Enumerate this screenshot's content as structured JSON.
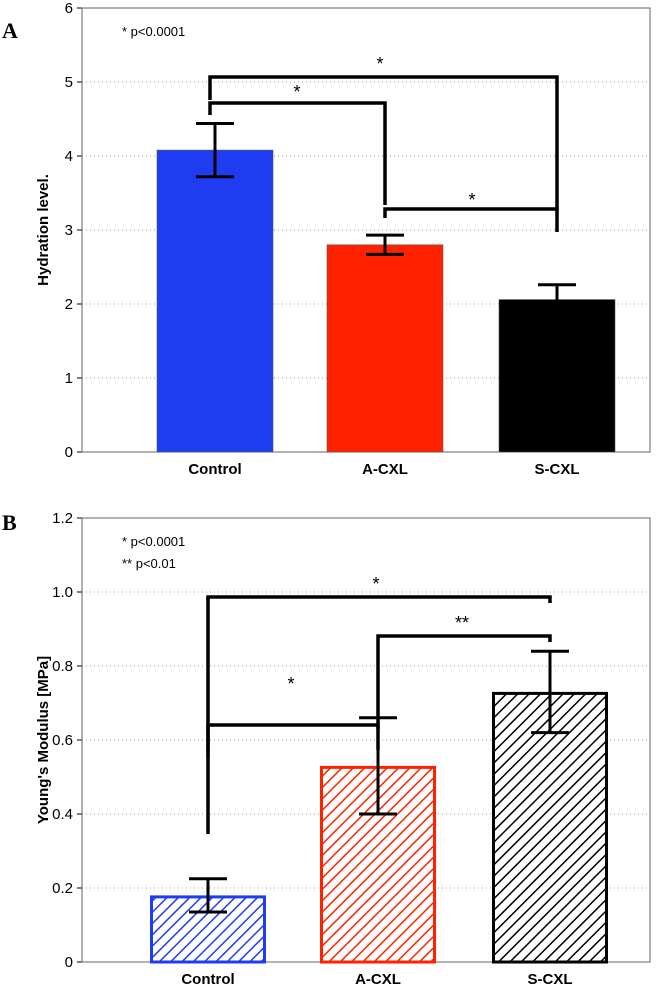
{
  "chart_data": [
    {
      "type": "bar",
      "panel_label": "A",
      "categories": [
        "Control",
        "A-CXL",
        "S-CXL"
      ],
      "values": [
        4.08,
        2.8,
        2.06
      ],
      "errors": [
        0.36,
        0.13,
        0.2
      ],
      "colors": [
        "#1f3cf0",
        "#ff2200",
        "#000000"
      ],
      "fill": "solid",
      "ylabel": "Hydration level.",
      "ylim": [
        0,
        6
      ],
      "yticks": [
        "0",
        "1",
        "2",
        "3",
        "4",
        "5",
        "6"
      ],
      "grid": true,
      "notes": [
        "* p<0.0001"
      ],
      "significance": [
        {
          "from": 0,
          "to": 1,
          "label": "*"
        },
        {
          "from": 0,
          "to": 2,
          "label": "*"
        },
        {
          "from": 1,
          "to": 2,
          "label": "*"
        }
      ]
    },
    {
      "type": "bar",
      "panel_label": "B",
      "categories": [
        "Control",
        "A-CXL",
        "S-CXL"
      ],
      "values": [
        0.18,
        0.53,
        0.73
      ],
      "errors": [
        0.045,
        0.13,
        0.11
      ],
      "colors": [
        "#1f3cf0",
        "#ff2200",
        "#000000"
      ],
      "fill": "hatched",
      "ylabel": "Young's Modulus [MPa]",
      "ylim": [
        0,
        1.2
      ],
      "yticks": [
        "0",
        "0.2",
        "0.4",
        "0.6",
        "0.8",
        "1.0",
        "1.2"
      ],
      "grid": true,
      "notes": [
        "* p<0.0001",
        "** p<0.01"
      ],
      "significance": [
        {
          "from": 0,
          "to": 1,
          "label": "*"
        },
        {
          "from": 0,
          "to": 2,
          "label": "*"
        },
        {
          "from": 1,
          "to": 2,
          "label": "**"
        }
      ]
    }
  ]
}
